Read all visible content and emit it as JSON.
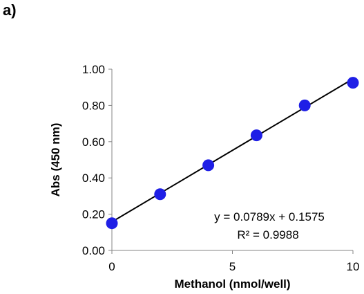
{
  "panel_label": "a)",
  "chart_data": {
    "type": "scatter",
    "title": "",
    "xlabel": "Methanol (nmol/well)",
    "ylabel": "Abs (450 nm)",
    "xlim": [
      0,
      10
    ],
    "ylim": [
      0,
      1.0
    ],
    "x_ticks": [
      0,
      5,
      10
    ],
    "x_tick_labels": [
      "0",
      "5",
      "10"
    ],
    "y_ticks": [
      0,
      0.2,
      0.4,
      0.6,
      0.8,
      1.0
    ],
    "y_tick_labels": [
      "0.00",
      "0.20",
      "0.40",
      "0.60",
      "0.80",
      "1.00"
    ],
    "grid": false,
    "legend": "none",
    "series": [
      {
        "x": [
          0,
          2,
          4,
          6,
          8,
          10
        ],
        "y": [
          0.15,
          0.31,
          0.47,
          0.635,
          0.8,
          0.925
        ],
        "color": "#1f1fe6"
      }
    ],
    "trendline": {
      "slope": 0.0789,
      "intercept": 0.1575,
      "color": "#000000"
    },
    "annotations": [
      "y = 0.0789x + 0.1575",
      "R² = 0.9988"
    ]
  }
}
